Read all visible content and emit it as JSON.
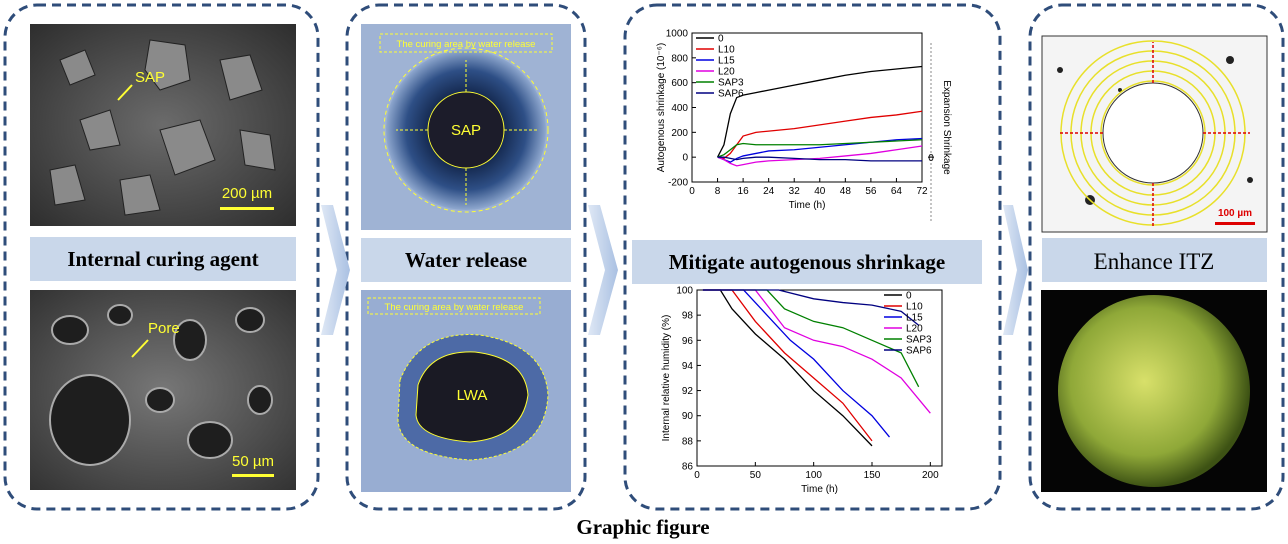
{
  "caption": "Graphic figure",
  "internal_curing": {
    "label": "Internal curing agent",
    "top_image": {
      "pointer": "SAP",
      "scale": "200 µm"
    },
    "bottom_image": {
      "pointer": "Pore",
      "scale": "50 µm"
    }
  },
  "water_release": {
    "label": "Water release",
    "top_image": {
      "zone": "The curing area by water release",
      "core": "SAP"
    },
    "bottom_image": {
      "zone": "The curing area by water release",
      "core": "LWA"
    }
  },
  "shrinkage": {
    "label": "Mitigate autogenous shrinkage",
    "charts": [
      {
        "type": "line",
        "x_label": "Time (h)",
        "y_label": "Autogenous shrinkage (10⁻⁶)",
        "xlim": [
          0,
          72
        ],
        "ylim": [
          -200,
          1000
        ],
        "xticks": [
          0,
          8,
          16,
          24,
          32,
          40,
          48,
          56,
          64,
          72
        ],
        "yticks": [
          -200,
          0,
          200,
          400,
          600,
          800,
          1000
        ],
        "y2_label": "Expansion  Shrinkage",
        "y2lim": [
          -200,
          1000
        ],
        "y2ticks": [
          0
        ],
        "legend": "upper left",
        "x": [
          8,
          10,
          12,
          14,
          16,
          20,
          24,
          32,
          40,
          48,
          56,
          64,
          72
        ],
        "series": [
          {
            "name": "0",
            "color": "#000000",
            "values": [
              0,
              100,
              350,
              480,
              500,
              520,
              540,
              580,
              620,
              660,
              690,
              710,
              730
            ]
          },
          {
            "name": "L10",
            "color": "#e00000",
            "values": [
              0,
              -10,
              30,
              100,
              170,
              200,
              210,
              230,
              260,
              290,
              320,
              340,
              370
            ]
          },
          {
            "name": "L15",
            "color": "#0000e0",
            "values": [
              0,
              -20,
              -40,
              -10,
              10,
              30,
              50,
              60,
              80,
              100,
              120,
              140,
              150
            ]
          },
          {
            "name": "L20",
            "color": "#e000e0",
            "values": [
              0,
              -20,
              -50,
              -70,
              -60,
              -40,
              -30,
              -20,
              -10,
              10,
              30,
              60,
              90
            ]
          },
          {
            "name": "SAP3",
            "color": "#008000",
            "values": [
              0,
              20,
              60,
              100,
              110,
              100,
              100,
              100,
              100,
              110,
              120,
              130,
              140
            ]
          },
          {
            "name": "SAP6",
            "color": "#000080",
            "values": [
              0,
              0,
              -10,
              -20,
              -10,
              0,
              0,
              -10,
              -20,
              -20,
              -30,
              -30,
              -30
            ]
          }
        ]
      },
      {
        "type": "line",
        "x_label": "Time (h)",
        "y_label": "Internal relative humidity (%)",
        "xlim": [
          0,
          210
        ],
        "ylim": [
          86,
          100
        ],
        "xticks": [
          0,
          50,
          100,
          150,
          200
        ],
        "yticks": [
          86,
          88,
          90,
          92,
          94,
          96,
          98,
          100
        ],
        "legend": "upper right",
        "series": [
          {
            "name": "0",
            "color": "#000000",
            "x": [
              5,
              10,
              20,
              30,
              50,
              75,
              100,
              125,
              150
            ],
            "values": [
              100,
              100,
              100,
              98.5,
              96.5,
              94.5,
              92,
              90,
              87.6
            ]
          },
          {
            "name": "L10",
            "color": "#e00000",
            "x": [
              5,
              30,
              50,
              75,
              100,
              125,
              150
            ],
            "values": [
              100,
              100,
              97.5,
              95,
              93,
              91,
              88
            ]
          },
          {
            "name": "L15",
            "color": "#0000e0",
            "x": [
              5,
              40,
              60,
              80,
              100,
              125,
              150,
              165
            ],
            "values": [
              100,
              100,
              98,
              96,
              94.5,
              92,
              90,
              88.3
            ]
          },
          {
            "name": "L20",
            "color": "#e000e0",
            "x": [
              5,
              50,
              75,
              100,
              125,
              150,
              175,
              200
            ],
            "values": [
              100,
              100,
              97,
              96,
              95.5,
              94.5,
              93,
              90.2
            ]
          },
          {
            "name": "SAP3",
            "color": "#008000",
            "x": [
              5,
              60,
              75,
              100,
              125,
              150,
              175,
              190
            ],
            "values": [
              100,
              100,
              98.5,
              97.5,
              97,
              96,
              95,
              92.3
            ]
          },
          {
            "name": "SAP6",
            "color": "#000080",
            "x": [
              5,
              70,
              100,
              125,
              150,
              175,
              190
            ],
            "values": [
              100,
              100,
              99.3,
              99,
              98.8,
              98.3,
              97.2
            ]
          }
        ]
      }
    ]
  },
  "itz": {
    "label": "Enhance ITZ",
    "top_image": {
      "scale": "100 µm"
    }
  }
}
